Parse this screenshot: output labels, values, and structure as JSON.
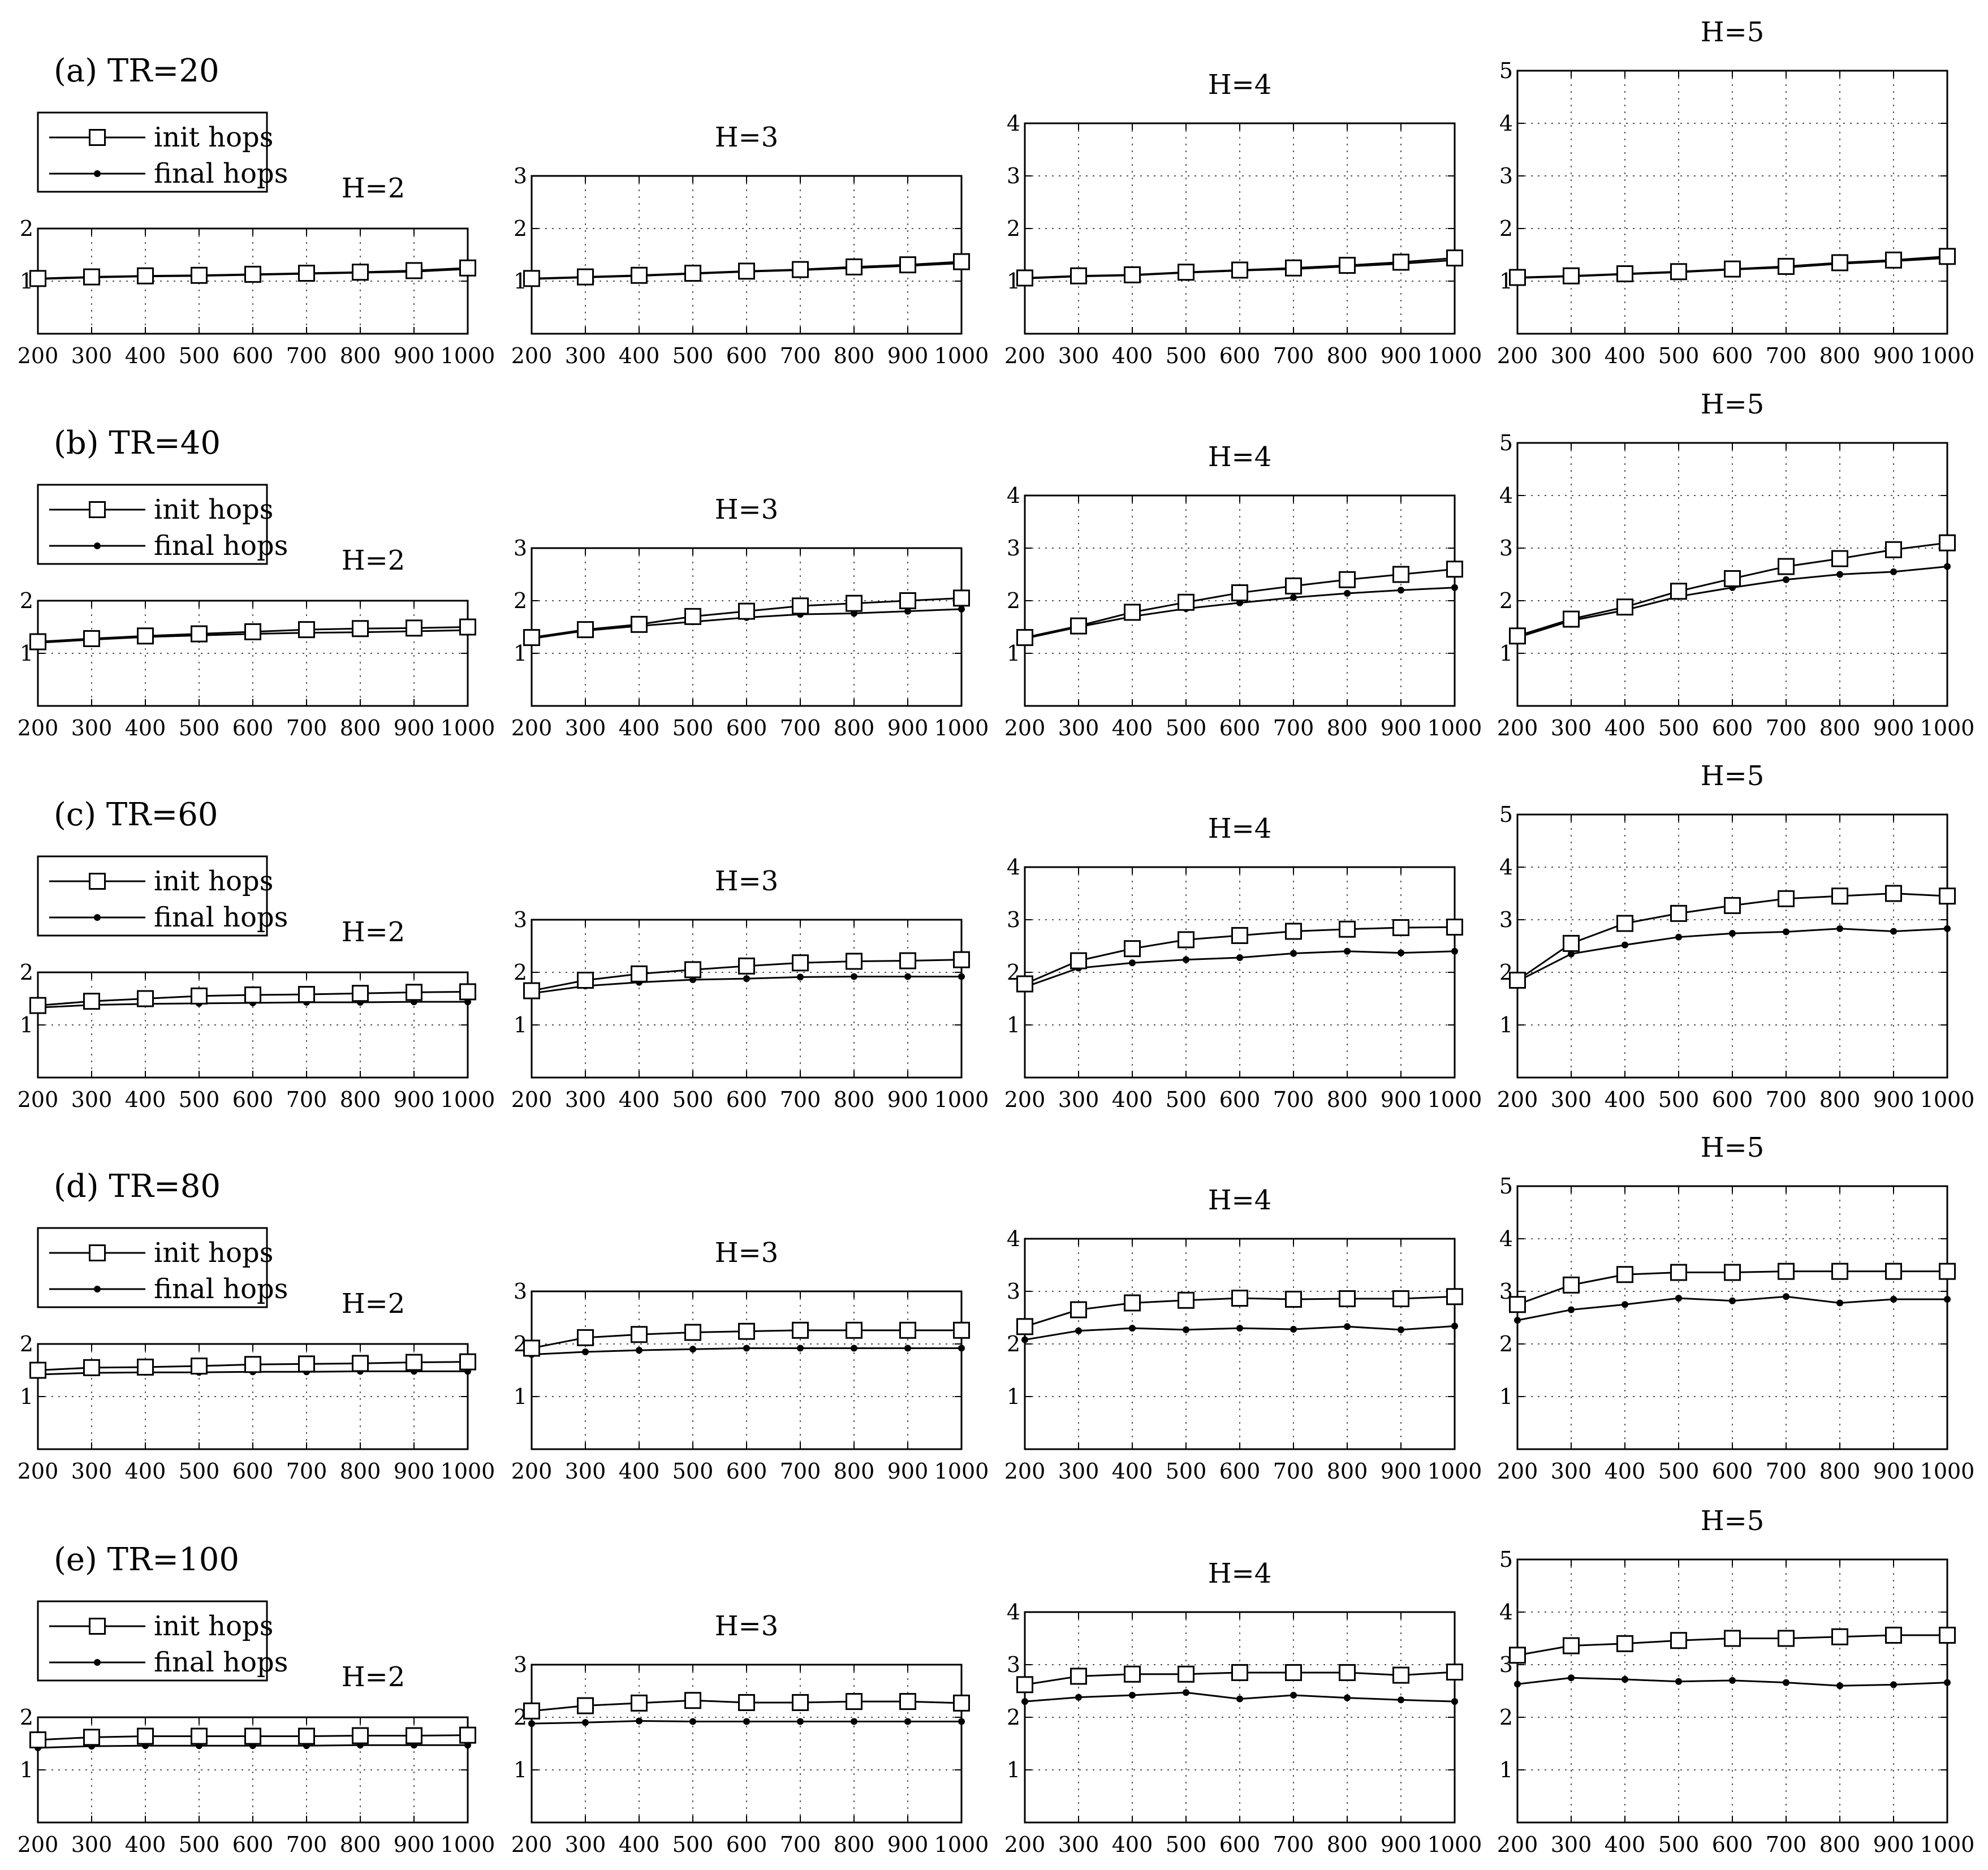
{
  "legend": {
    "init_label": "init hops",
    "final_label": "final hops"
  },
  "chart_data": [
    {
      "type": "line",
      "row_label": "(a) TR=20",
      "title": "H=2",
      "x": [
        200,
        300,
        400,
        500,
        600,
        700,
        800,
        900,
        1000
      ],
      "ylim": [
        0,
        2
      ],
      "yticks": [
        1,
        2
      ],
      "series": [
        {
          "name": "init hops",
          "values": [
            1.05,
            1.08,
            1.1,
            1.11,
            1.13,
            1.15,
            1.17,
            1.2,
            1.25
          ]
        },
        {
          "name": "final hops",
          "values": [
            1.04,
            1.07,
            1.09,
            1.1,
            1.12,
            1.14,
            1.16,
            1.18,
            1.23
          ]
        }
      ]
    },
    {
      "type": "line",
      "row_label": "",
      "title": "H=3",
      "x": [
        200,
        300,
        400,
        500,
        600,
        700,
        800,
        900,
        1000
      ],
      "ylim": [
        0,
        3
      ],
      "yticks": [
        1,
        2,
        3
      ],
      "series": [
        {
          "name": "init hops",
          "values": [
            1.05,
            1.08,
            1.11,
            1.15,
            1.19,
            1.22,
            1.27,
            1.31,
            1.37
          ]
        },
        {
          "name": "final hops",
          "values": [
            1.04,
            1.07,
            1.1,
            1.14,
            1.18,
            1.21,
            1.25,
            1.29,
            1.34
          ]
        }
      ]
    },
    {
      "type": "line",
      "row_label": "",
      "title": "H=4",
      "x": [
        200,
        300,
        400,
        500,
        600,
        700,
        800,
        900,
        1000
      ],
      "ylim": [
        0,
        4
      ],
      "yticks": [
        1,
        2,
        3,
        4
      ],
      "series": [
        {
          "name": "init hops",
          "values": [
            1.06,
            1.1,
            1.12,
            1.17,
            1.21,
            1.25,
            1.3,
            1.36,
            1.44
          ]
        },
        {
          "name": "final hops",
          "values": [
            1.05,
            1.09,
            1.11,
            1.16,
            1.2,
            1.23,
            1.28,
            1.33,
            1.4
          ]
        }
      ]
    },
    {
      "type": "line",
      "row_label": "",
      "title": "H=5",
      "x": [
        200,
        300,
        400,
        500,
        600,
        700,
        800,
        900,
        1000
      ],
      "ylim": [
        0,
        5
      ],
      "yticks": [
        1,
        2,
        3,
        4,
        5
      ],
      "series": [
        {
          "name": "init hops",
          "values": [
            1.07,
            1.1,
            1.14,
            1.18,
            1.23,
            1.28,
            1.35,
            1.4,
            1.47
          ]
        },
        {
          "name": "final hops",
          "values": [
            1.06,
            1.09,
            1.13,
            1.17,
            1.22,
            1.26,
            1.33,
            1.38,
            1.44
          ]
        }
      ]
    },
    {
      "type": "line",
      "row_label": "(b) TR=40",
      "title": "H=2",
      "x": [
        200,
        300,
        400,
        500,
        600,
        700,
        800,
        900,
        1000
      ],
      "ylim": [
        0,
        2
      ],
      "yticks": [
        1,
        2
      ],
      "series": [
        {
          "name": "init hops",
          "values": [
            1.22,
            1.28,
            1.33,
            1.37,
            1.41,
            1.45,
            1.47,
            1.48,
            1.5
          ]
        },
        {
          "name": "final hops",
          "values": [
            1.2,
            1.26,
            1.31,
            1.34,
            1.37,
            1.39,
            1.4,
            1.42,
            1.44
          ]
        }
      ]
    },
    {
      "type": "line",
      "row_label": "",
      "title": "H=3",
      "x": [
        200,
        300,
        400,
        500,
        600,
        700,
        800,
        900,
        1000
      ],
      "ylim": [
        0,
        3
      ],
      "yticks": [
        1,
        2,
        3
      ],
      "series": [
        {
          "name": "init hops",
          "values": [
            1.3,
            1.45,
            1.55,
            1.7,
            1.8,
            1.9,
            1.95,
            2.0,
            2.05
          ]
        },
        {
          "name": "final hops",
          "values": [
            1.28,
            1.43,
            1.52,
            1.6,
            1.68,
            1.74,
            1.76,
            1.8,
            1.84
          ]
        }
      ]
    },
    {
      "type": "line",
      "row_label": "",
      "title": "H=4",
      "x": [
        200,
        300,
        400,
        500,
        600,
        700,
        800,
        900,
        1000
      ],
      "ylim": [
        0,
        4
      ],
      "yticks": [
        1,
        2,
        3,
        4
      ],
      "series": [
        {
          "name": "init hops",
          "values": [
            1.3,
            1.52,
            1.78,
            1.97,
            2.15,
            2.28,
            2.4,
            2.5,
            2.6
          ]
        },
        {
          "name": "final hops",
          "values": [
            1.28,
            1.5,
            1.7,
            1.85,
            1.96,
            2.06,
            2.14,
            2.2,
            2.25
          ]
        }
      ]
    },
    {
      "type": "line",
      "row_label": "",
      "title": "H=5",
      "x": [
        200,
        300,
        400,
        500,
        600,
        700,
        800,
        900,
        1000
      ],
      "ylim": [
        0,
        5
      ],
      "yticks": [
        1,
        2,
        3,
        4,
        5
      ],
      "series": [
        {
          "name": "init hops",
          "values": [
            1.33,
            1.65,
            1.88,
            2.18,
            2.42,
            2.65,
            2.8,
            2.97,
            3.1
          ]
        },
        {
          "name": "final hops",
          "values": [
            1.3,
            1.62,
            1.82,
            2.08,
            2.25,
            2.4,
            2.5,
            2.55,
            2.65
          ]
        }
      ]
    },
    {
      "type": "line",
      "row_label": "(c) TR=60",
      "title": "H=2",
      "x": [
        200,
        300,
        400,
        500,
        600,
        700,
        800,
        900,
        1000
      ],
      "ylim": [
        0,
        2
      ],
      "yticks": [
        1,
        2
      ],
      "series": [
        {
          "name": "init hops",
          "values": [
            1.37,
            1.45,
            1.5,
            1.55,
            1.57,
            1.58,
            1.6,
            1.62,
            1.63
          ]
        },
        {
          "name": "final hops",
          "values": [
            1.33,
            1.38,
            1.4,
            1.41,
            1.42,
            1.43,
            1.43,
            1.44,
            1.44
          ]
        }
      ]
    },
    {
      "type": "line",
      "row_label": "",
      "title": "H=3",
      "x": [
        200,
        300,
        400,
        500,
        600,
        700,
        800,
        900,
        1000
      ],
      "ylim": [
        0,
        3
      ],
      "yticks": [
        1,
        2,
        3
      ],
      "series": [
        {
          "name": "init hops",
          "values": [
            1.65,
            1.85,
            1.97,
            2.05,
            2.12,
            2.18,
            2.21,
            2.22,
            2.24
          ]
        },
        {
          "name": "final hops",
          "values": [
            1.6,
            1.74,
            1.81,
            1.86,
            1.88,
            1.91,
            1.92,
            1.92,
            1.92
          ]
        }
      ]
    },
    {
      "type": "line",
      "row_label": "",
      "title": "H=4",
      "x": [
        200,
        300,
        400,
        500,
        600,
        700,
        800,
        900,
        1000
      ],
      "ylim": [
        0,
        4
      ],
      "yticks": [
        1,
        2,
        3,
        4
      ],
      "series": [
        {
          "name": "init hops",
          "values": [
            1.78,
            2.22,
            2.45,
            2.62,
            2.7,
            2.78,
            2.82,
            2.85,
            2.86
          ]
        },
        {
          "name": "final hops",
          "values": [
            1.72,
            2.08,
            2.18,
            2.24,
            2.28,
            2.36,
            2.4,
            2.37,
            2.4
          ]
        }
      ]
    },
    {
      "type": "line",
      "row_label": "",
      "title": "H=5",
      "x": [
        200,
        300,
        400,
        500,
        600,
        700,
        800,
        900,
        1000
      ],
      "ylim": [
        0,
        5
      ],
      "yticks": [
        1,
        2,
        3,
        4,
        5
      ],
      "series": [
        {
          "name": "init hops",
          "values": [
            1.85,
            2.55,
            2.93,
            3.12,
            3.27,
            3.4,
            3.45,
            3.5,
            3.45
          ]
        },
        {
          "name": "final hops",
          "values": [
            1.83,
            2.35,
            2.52,
            2.67,
            2.74,
            2.77,
            2.83,
            2.78,
            2.83
          ]
        }
      ]
    },
    {
      "type": "line",
      "row_label": "(d) TR=80",
      "title": "H=2",
      "x": [
        200,
        300,
        400,
        500,
        600,
        700,
        800,
        900,
        1000
      ],
      "ylim": [
        0,
        2
      ],
      "yticks": [
        1,
        2
      ],
      "series": [
        {
          "name": "init hops",
          "values": [
            1.5,
            1.55,
            1.56,
            1.58,
            1.61,
            1.62,
            1.63,
            1.65,
            1.66
          ]
        },
        {
          "name": "final hops",
          "values": [
            1.42,
            1.45,
            1.46,
            1.46,
            1.47,
            1.47,
            1.48,
            1.48,
            1.48
          ]
        }
      ]
    },
    {
      "type": "line",
      "row_label": "",
      "title": "H=3",
      "x": [
        200,
        300,
        400,
        500,
        600,
        700,
        800,
        900,
        1000
      ],
      "ylim": [
        0,
        3
      ],
      "yticks": [
        1,
        2,
        3
      ],
      "series": [
        {
          "name": "init hops",
          "values": [
            1.92,
            2.12,
            2.18,
            2.22,
            2.24,
            2.26,
            2.26,
            2.26,
            2.26
          ]
        },
        {
          "name": "final hops",
          "values": [
            1.8,
            1.85,
            1.88,
            1.9,
            1.92,
            1.92,
            1.92,
            1.92,
            1.92
          ]
        }
      ]
    },
    {
      "type": "line",
      "row_label": "",
      "title": "H=4",
      "x": [
        200,
        300,
        400,
        500,
        600,
        700,
        800,
        900,
        1000
      ],
      "ylim": [
        0,
        4
      ],
      "yticks": [
        1,
        2,
        3,
        4
      ],
      "series": [
        {
          "name": "init hops",
          "values": [
            2.33,
            2.65,
            2.78,
            2.83,
            2.87,
            2.85,
            2.86,
            2.86,
            2.9
          ]
        },
        {
          "name": "final hops",
          "values": [
            2.08,
            2.25,
            2.3,
            2.27,
            2.3,
            2.28,
            2.33,
            2.27,
            2.34
          ]
        }
      ]
    },
    {
      "type": "line",
      "row_label": "",
      "title": "H=5",
      "x": [
        200,
        300,
        400,
        500,
        600,
        700,
        800,
        900,
        1000
      ],
      "ylim": [
        0,
        5
      ],
      "yticks": [
        1,
        2,
        3,
        4,
        5
      ],
      "series": [
        {
          "name": "init hops",
          "values": [
            2.75,
            3.12,
            3.32,
            3.36,
            3.36,
            3.38,
            3.38,
            3.38,
            3.38
          ]
        },
        {
          "name": "final hops",
          "values": [
            2.45,
            2.65,
            2.75,
            2.87,
            2.82,
            2.9,
            2.78,
            2.85,
            2.85
          ]
        }
      ]
    },
    {
      "type": "line",
      "row_label": "(e) TR=100",
      "title": "H=2",
      "x": [
        200,
        300,
        400,
        500,
        600,
        700,
        800,
        900,
        1000
      ],
      "ylim": [
        0,
        2
      ],
      "yticks": [
        1,
        2
      ],
      "series": [
        {
          "name": "init hops",
          "values": [
            1.57,
            1.62,
            1.64,
            1.64,
            1.64,
            1.64,
            1.65,
            1.65,
            1.66
          ]
        },
        {
          "name": "final hops",
          "values": [
            1.42,
            1.45,
            1.46,
            1.46,
            1.46,
            1.46,
            1.47,
            1.47,
            1.47
          ]
        }
      ]
    },
    {
      "type": "line",
      "row_label": "",
      "title": "H=3",
      "x": [
        200,
        300,
        400,
        500,
        600,
        700,
        800,
        900,
        1000
      ],
      "ylim": [
        0,
        3
      ],
      "yticks": [
        1,
        2,
        3
      ],
      "series": [
        {
          "name": "init hops",
          "values": [
            2.12,
            2.22,
            2.27,
            2.32,
            2.28,
            2.28,
            2.3,
            2.3,
            2.27
          ]
        },
        {
          "name": "final hops",
          "values": [
            1.88,
            1.9,
            1.93,
            1.92,
            1.92,
            1.92,
            1.92,
            1.92,
            1.92
          ]
        }
      ]
    },
    {
      "type": "line",
      "row_label": "",
      "title": "H=4",
      "x": [
        200,
        300,
        400,
        500,
        600,
        700,
        800,
        900,
        1000
      ],
      "ylim": [
        0,
        4
      ],
      "yticks": [
        1,
        2,
        3,
        4
      ],
      "series": [
        {
          "name": "init hops",
          "values": [
            2.62,
            2.78,
            2.82,
            2.82,
            2.85,
            2.85,
            2.85,
            2.8,
            2.86
          ]
        },
        {
          "name": "final hops",
          "values": [
            2.3,
            2.38,
            2.42,
            2.47,
            2.35,
            2.42,
            2.37,
            2.33,
            2.3
          ]
        }
      ]
    },
    {
      "type": "line",
      "row_label": "",
      "title": "H=5",
      "x": [
        200,
        300,
        400,
        500,
        600,
        700,
        800,
        900,
        1000
      ],
      "ylim": [
        0,
        5
      ],
      "yticks": [
        1,
        2,
        3,
        4,
        5
      ],
      "series": [
        {
          "name": "init hops",
          "values": [
            3.18,
            3.36,
            3.4,
            3.46,
            3.5,
            3.5,
            3.53,
            3.56,
            3.56
          ]
        },
        {
          "name": "final hops",
          "values": [
            2.63,
            2.75,
            2.72,
            2.68,
            2.7,
            2.66,
            2.6,
            2.62,
            2.66
          ]
        }
      ]
    }
  ]
}
